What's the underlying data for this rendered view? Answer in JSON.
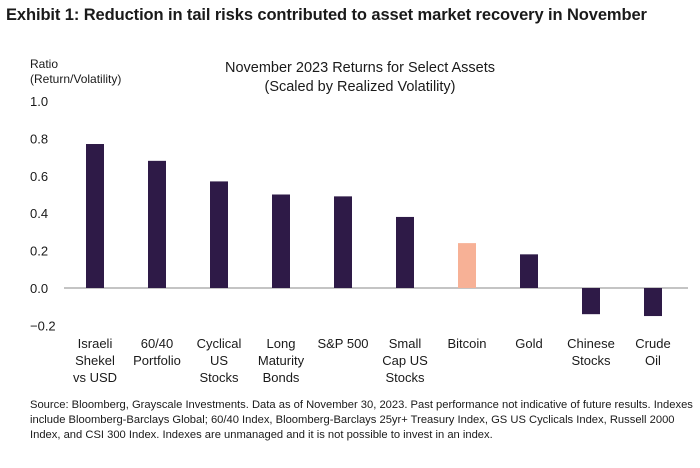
{
  "exhibit_title": "Exhibit 1: Reduction in tail risks contributed to asset market recovery in November",
  "chart_title_line1": "November 2023 Returns for Select Assets",
  "chart_title_line2": "(Scaled by Realized Volatility)",
  "ylabel_line1": "Ratio",
  "ylabel_line2": "(Return/Volatility)",
  "source": "Source: Bloomberg, Grayscale Investments. Data as of November 30, 2023. Past performance not indicative of future results. Indexes include Bloomberg-Barclays Global; 60/40 Index, Bloomberg-Barclays 25yr+ Treasury Index, GS US Cyclicals Index, Russell 2000 Index, and CSI 300 Index. Indexes are unmanaged and it is not possible to invest in an index.",
  "colors": {
    "bar": "#2e1a47",
    "highlight": "#f7b196",
    "axis": "#888888"
  },
  "chart_data": {
    "type": "bar",
    "title": "November 2023 Returns for Select Assets (Scaled by Realized Volatility)",
    "ylabel": "Ratio (Return/Volatility)",
    "ylim": [
      -0.2,
      1.0
    ],
    "yticks": [
      "1.0",
      "0.8",
      "0.6",
      "0.4",
      "0.2",
      "0.0",
      "−0.2"
    ],
    "ytick_values": [
      1.0,
      0.8,
      0.6,
      0.4,
      0.2,
      0.0,
      -0.2
    ],
    "grid": false,
    "categories": [
      [
        "Israeli",
        "Shekel",
        "vs USD"
      ],
      [
        "60/40",
        "Portfolio"
      ],
      [
        "Cyclical",
        "US",
        "Stocks"
      ],
      [
        "Long",
        "Maturity",
        "Bonds"
      ],
      [
        "S&P 500"
      ],
      [
        "Small",
        "Cap US",
        "Stocks"
      ],
      [
        "Bitcoin"
      ],
      [
        "Gold"
      ],
      [
        "Chinese",
        "Stocks"
      ],
      [
        "Crude",
        "Oil"
      ]
    ],
    "values": [
      0.77,
      0.68,
      0.57,
      0.5,
      0.49,
      0.38,
      0.24,
      0.18,
      -0.14,
      -0.15
    ],
    "highlight_index": 6
  }
}
